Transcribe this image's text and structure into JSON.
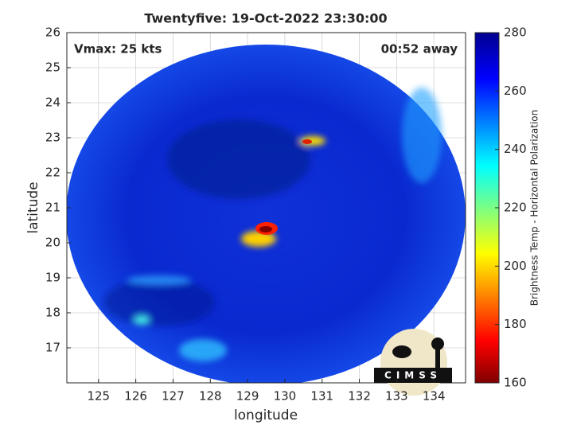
{
  "chart_data": {
    "type": "image",
    "title": "Twentyfive: 19-Oct-2022 23:30:00",
    "x_label": "longitude",
    "y_label": "latitude",
    "xlim": [
      124.15,
      134.85
    ],
    "ylim": [
      16,
      26
    ],
    "xticks": [
      125,
      126,
      127,
      128,
      129,
      130,
      131,
      132,
      133,
      134
    ],
    "yticks": [
      17,
      18,
      19,
      20,
      21,
      22,
      23,
      24,
      25,
      26
    ],
    "grid": true,
    "annotations": [
      "Vmax: 25 kts",
      "00:52 away"
    ],
    "colorbar": {
      "label": "Brightness Temp - Horizontal Polarization",
      "lim": [
        160,
        280
      ],
      "ticks": [
        160,
        180,
        200,
        220,
        240,
        260,
        280
      ]
    },
    "logo": "CIMSS"
  }
}
